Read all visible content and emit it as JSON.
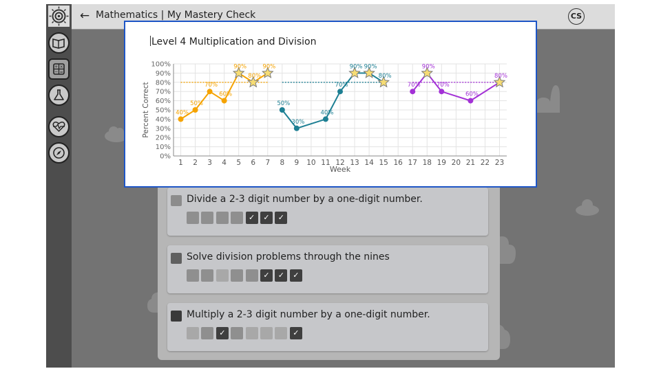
{
  "app": {
    "title": "Mathematics | My Mastery Check",
    "avatar_initials": "CS"
  },
  "sidebar": {
    "items": [
      {
        "icon": "spiral-logo-icon",
        "active": false
      },
      {
        "icon": "open-book-icon",
        "active": false
      },
      {
        "icon": "calculator-icon",
        "active": true
      },
      {
        "icon": "flask-icon",
        "active": false
      },
      {
        "icon": "heart-pulse-icon",
        "active": false
      },
      {
        "icon": "compass-icon",
        "active": false
      }
    ]
  },
  "skills": [
    {
      "title": "Divide a 2-3 digit number by a one-digit number.",
      "check_color": "#8c8c8c",
      "boxes": [
        "light",
        "light",
        "light",
        "light",
        "check",
        "check",
        "check"
      ]
    },
    {
      "title": "Solve division problems through the nines",
      "check_color": "#606060",
      "boxes": [
        "light",
        "light",
        "lighter",
        "light",
        "light",
        "check",
        "check",
        "check"
      ]
    },
    {
      "title": "Multiply a 2-3 digit number by a one-digit number.",
      "check_color": "#3a3a3a",
      "boxes": [
        "lighter",
        "light",
        "check",
        "light",
        "lighter",
        "lighter",
        "lighter",
        "check"
      ]
    }
  ],
  "colors": {
    "accent_border": "#1d55c6",
    "series_orange": "#f5a300",
    "series_teal": "#1d7f93",
    "series_purple": "#a331d6",
    "star_fill": "#f6dc74"
  },
  "modal": {
    "title": "Level 4 Multiplication and Division",
    "chart_data": {
      "type": "line",
      "xlabel": "Week",
      "ylabel": "Percent Correct",
      "x_ticks": [
        1,
        2,
        3,
        4,
        5,
        6,
        7,
        8,
        9,
        10,
        11,
        12,
        13,
        14,
        15,
        16,
        17,
        18,
        19,
        20,
        21,
        22,
        23
      ],
      "y_ticks": [
        "0%",
        "10%",
        "20%",
        "30%",
        "40%",
        "50%",
        "60%",
        "70%",
        "80%",
        "90%",
        "100%"
      ],
      "xlim": [
        0.5,
        23.5
      ],
      "ylim": [
        0,
        100
      ],
      "grid": true,
      "series": [
        {
          "color": "#f5a300",
          "goal": 80,
          "goal_x": [
            1,
            7
          ],
          "points": [
            {
              "x": 1,
              "y": 40,
              "label": "40%",
              "star": false
            },
            {
              "x": 2,
              "y": 50,
              "label": "50%",
              "star": false
            },
            {
              "x": 3,
              "y": 70,
              "label": "70%",
              "star": false
            },
            {
              "x": 4,
              "y": 60,
              "label": "60%",
              "star": false
            },
            {
              "x": 5,
              "y": 90,
              "label": "90%",
              "star": true
            },
            {
              "x": 6,
              "y": 80,
              "label": "80%",
              "star": true
            },
            {
              "x": 7,
              "y": 90,
              "label": "90%",
              "star": true
            }
          ]
        },
        {
          "color": "#1d7f93",
          "goal": 80,
          "goal_x": [
            8,
            15
          ],
          "points": [
            {
              "x": 8,
              "y": 50,
              "label": "50%",
              "star": false
            },
            {
              "x": 9,
              "y": 30,
              "label": "30%",
              "star": false
            },
            {
              "x": 11,
              "y": 40,
              "label": "40%",
              "star": false
            },
            {
              "x": 12,
              "y": 70,
              "label": "70%",
              "star": false
            },
            {
              "x": 13,
              "y": 90,
              "label": "90%",
              "star": true
            },
            {
              "x": 14,
              "y": 90,
              "label": "90%",
              "star": true
            },
            {
              "x": 15,
              "y": 80,
              "label": "80%",
              "star": true
            }
          ]
        },
        {
          "color": "#a331d6",
          "goal": 80,
          "goal_x": [
            17,
            23
          ],
          "points": [
            {
              "x": 17,
              "y": 70,
              "label": "70%",
              "star": false
            },
            {
              "x": 18,
              "y": 90,
              "label": "90%",
              "star": true
            },
            {
              "x": 19,
              "y": 70,
              "label": "70%",
              "star": false
            },
            {
              "x": 21,
              "y": 60,
              "label": "60%",
              "star": false
            },
            {
              "x": 23,
              "y": 80,
              "label": "80%",
              "star": true
            }
          ]
        }
      ]
    }
  }
}
